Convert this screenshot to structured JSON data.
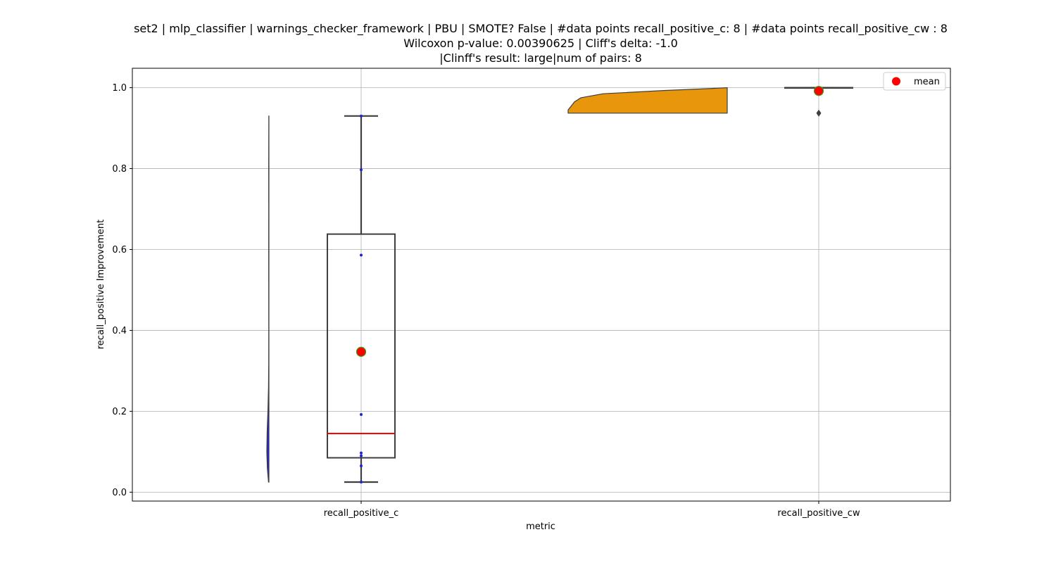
{
  "title_lines": [
    "set2 | mlp_classifier | warnings_checker_framework | PBU | SMOTE? False | #data points recall_positive_c: 8 | #data points recall_positive_cw : 8",
    "Wilcoxon p-value: 0.00390625 | Cliff's delta: -1.0",
    "|Clinff's result: large|num of pairs: 8"
  ],
  "chart_data": {
    "type": "box",
    "title": "set2 | mlp_classifier | warnings_checker_framework | PBU | SMOTE? False | #data points recall_positive_c: 8 | #data points recall_positive_cw : 8\nWilcoxon p-value: 0.00390625 | Cliff's delta: -1.0\n|Clinff's result: large|num of pairs: 8",
    "xlabel": "metric",
    "ylabel": "recall_positive Improvement",
    "ylim": [
      -0.022,
      1.048
    ],
    "yticks": [
      0.0,
      0.2,
      0.4,
      0.6,
      0.8,
      1.0
    ],
    "ytick_labels": [
      "0.0",
      "0.2",
      "0.4",
      "0.6",
      "0.8",
      "1.0"
    ],
    "categories": [
      "recall_positive_c",
      "recall_positive_cw"
    ],
    "grid": true,
    "legend": {
      "position": "top-right",
      "entries": [
        "mean"
      ]
    },
    "series": [
      {
        "category": "recall_positive_c",
        "violin_color": "#2020e0",
        "violin_density": [
          [
            0.025,
            0.1
          ],
          [
            0.06,
            0.38
          ],
          [
            0.1,
            0.5
          ],
          [
            0.15,
            0.42
          ],
          [
            0.2,
            0.24
          ],
          [
            0.26,
            0.1
          ],
          [
            0.32,
            0.05
          ],
          [
            0.4,
            0.04
          ],
          [
            0.5,
            0.05
          ],
          [
            0.6,
            0.06
          ],
          [
            0.7,
            0.05
          ],
          [
            0.8,
            0.06
          ],
          [
            0.88,
            0.04
          ],
          [
            0.93,
            0.03
          ]
        ],
        "points": [
          0.025,
          0.065,
          0.09,
          0.097,
          0.192,
          0.586,
          0.797,
          0.93
        ],
        "box": {
          "whisker_low": 0.025,
          "q1": 0.085,
          "median": 0.145,
          "q3": 0.638,
          "whisker_high": 0.93
        },
        "mean": 0.347
      },
      {
        "category": "recall_positive_cw",
        "violin_color": "#e8960c",
        "violin_density": [
          [
            0.937,
            1.0
          ],
          [
            0.945,
            1.0
          ],
          [
            0.955,
            0.98
          ],
          [
            0.965,
            0.96
          ],
          [
            0.975,
            0.92
          ],
          [
            0.985,
            0.78
          ],
          [
            0.993,
            0.4
          ],
          [
            0.998,
            0.1
          ],
          [
            1.0,
            0.0
          ]
        ],
        "points": [
          0.937,
          1.0,
          1.0,
          1.0,
          1.0,
          1.0,
          1.0,
          1.0
        ],
        "box": {
          "whisker_low": 1.0,
          "q1": 1.0,
          "median": 1.0,
          "q3": 1.0,
          "whisker_high": 1.0
        },
        "outliers": [
          0.937
        ],
        "mean": 0.992
      }
    ]
  },
  "colors": {
    "grid": "#b0b0b0",
    "box_edge": "#3f3f3f",
    "median_line": "#ff0000",
    "mean_marker": "#ff0000",
    "mean_edge": "#3a9a1a",
    "points": "#2020e0"
  }
}
